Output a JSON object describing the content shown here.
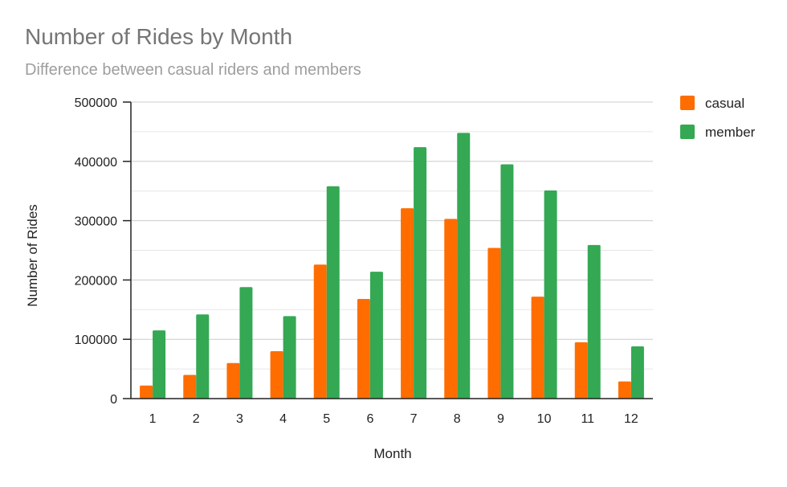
{
  "chart_data": {
    "type": "bar",
    "title": "Number of Rides by Month",
    "subtitle": "Difference between casual riders and members",
    "xlabel": "Month",
    "ylabel": "Number of Rides",
    "categories": [
      "1",
      "2",
      "3",
      "4",
      "5",
      "6",
      "7",
      "8",
      "9",
      "10",
      "11",
      "12"
    ],
    "series": [
      {
        "name": "casual",
        "color": "#ff6d01",
        "values": [
          22000,
          40000,
          60000,
          80000,
          226000,
          168000,
          321000,
          303000,
          254000,
          172000,
          95000,
          29000
        ]
      },
      {
        "name": "member",
        "color": "#34a853",
        "values": [
          115000,
          142000,
          188000,
          139000,
          358000,
          214000,
          424000,
          448000,
          395000,
          351000,
          259000,
          88000
        ]
      }
    ],
    "ylim": [
      0,
      500000
    ],
    "yticks": [
      "0",
      "100000",
      "200000",
      "300000",
      "400000",
      "500000"
    ],
    "grid": true,
    "legend_position": "right"
  }
}
